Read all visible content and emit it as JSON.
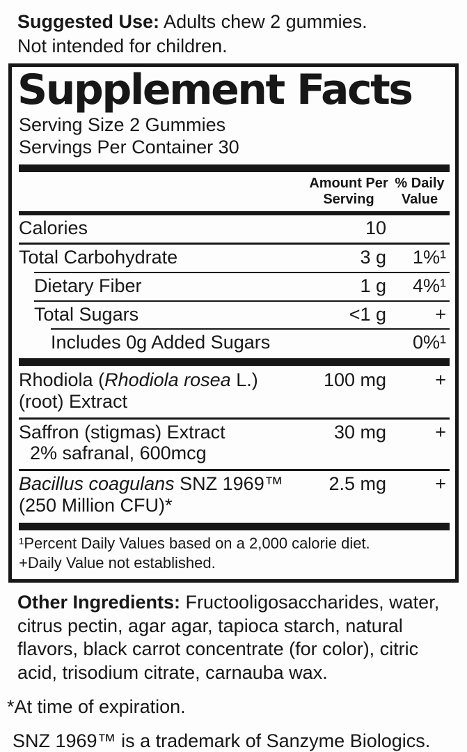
{
  "colors": {
    "ink": "#171717",
    "paper": "#fdfdfd"
  },
  "suggested_use": {
    "label": "Suggested Use:",
    "line1": " Adults chew 2 gummies.",
    "line2": "Not intended for children."
  },
  "facts": {
    "title": "Supplement Facts",
    "serving_size": "Serving Size 2 Gummies",
    "servings_per_container": "Servings Per Container 30",
    "columns": {
      "amount_line1": "Amount Per",
      "amount_line2": "Serving",
      "dv_line1": "% Daily",
      "dv_line2": "Value"
    },
    "calories": {
      "name": "Calories",
      "amount": "10",
      "dv": ""
    },
    "rows": [
      {
        "name": "Total Carbohydrate",
        "amount": "3 g",
        "dv": "1%¹"
      },
      {
        "name": "Dietary Fiber",
        "amount": "1 g",
        "dv": "4%¹"
      },
      {
        "name": "Total Sugars",
        "amount": "<1 g",
        "dv": "+"
      },
      {
        "name": "Includes 0g Added Sugars",
        "amount": "",
        "dv": "0%¹"
      }
    ],
    "supplements": [
      {
        "pre": "Rhodiola (",
        "it": "Rhodiola rosea",
        "post": " L.)",
        "line2": "(root) Extract",
        "amount": "100 mg",
        "dv": "+"
      },
      {
        "pre": "Saffron (stigmas) Extract",
        "it": "",
        "post": "",
        "line2": "2% safranal, 600mcg",
        "amount": "30 mg",
        "dv": "+"
      },
      {
        "pre": "",
        "it": "Bacillus coagulans",
        "post": " SNZ 1969™",
        "line2": "(250 Million CFU)*",
        "amount": "2.5 mg",
        "dv": "+"
      }
    ],
    "footnotes": [
      "¹Percent Daily Values based on a 2,000 calorie diet.",
      "+Daily Value not established."
    ]
  },
  "other_ingredients": {
    "label": "Other Ingredients:",
    "text": " Fructooligosaccharides, water, citrus pectin, agar agar, tapioca starch, natural flavors, black carrot concentrate (for color), citric acid, trisodium citrate, carnauba wax."
  },
  "notes": {
    "expiration": "*At time of expiration.",
    "trademark": "SNZ 1969™ is a trademark of Sanzyme Biologics."
  }
}
